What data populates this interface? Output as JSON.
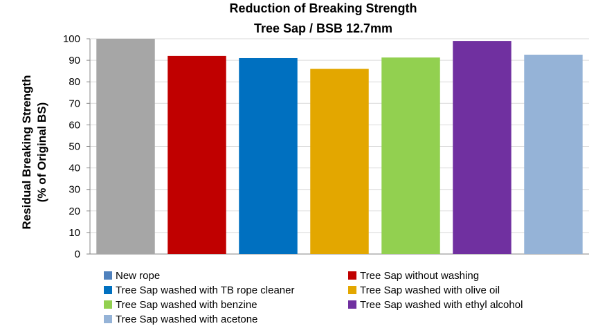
{
  "chart_data": {
    "type": "bar",
    "title": "Reduction of Breaking Strength",
    "subtitle": "Tree Sap / BSB 12.7mm",
    "ylabel_line1": "Residual Breaking Strength",
    "ylabel_line2": "(% of Original BS)",
    "xlabel": "",
    "ylim": [
      0,
      100
    ],
    "yticks": [
      0,
      10,
      20,
      30,
      40,
      50,
      60,
      70,
      80,
      90,
      100
    ],
    "grid": true,
    "legend_position": "bottom",
    "series": [
      {
        "name": "New rope",
        "value": 100,
        "bar_color": "#a6a6a6",
        "legend_color": "#4f81bd"
      },
      {
        "name": "Tree Sap without washing",
        "value": 92,
        "bar_color": "#c00000",
        "legend_color": "#c00000"
      },
      {
        "name": "Tree Sap washed with TB rope cleaner",
        "value": 91,
        "bar_color": "#0070c0",
        "legend_color": "#0070c0"
      },
      {
        "name": "Tree Sap washed with olive oil",
        "value": 86,
        "bar_color": "#e3a700",
        "legend_color": "#e3a700"
      },
      {
        "name": "Tree Sap washed with benzine",
        "value": 91.3,
        "bar_color": "#92d050",
        "legend_color": "#92d050"
      },
      {
        "name": "Tree Sap washed with ethyl alcohol",
        "value": 99,
        "bar_color": "#7030a0",
        "legend_color": "#7030a0"
      },
      {
        "name": "Tree Sap washed with acetone",
        "value": 92.6,
        "bar_color": "#95b3d7",
        "legend_color": "#95b3d7"
      }
    ]
  }
}
